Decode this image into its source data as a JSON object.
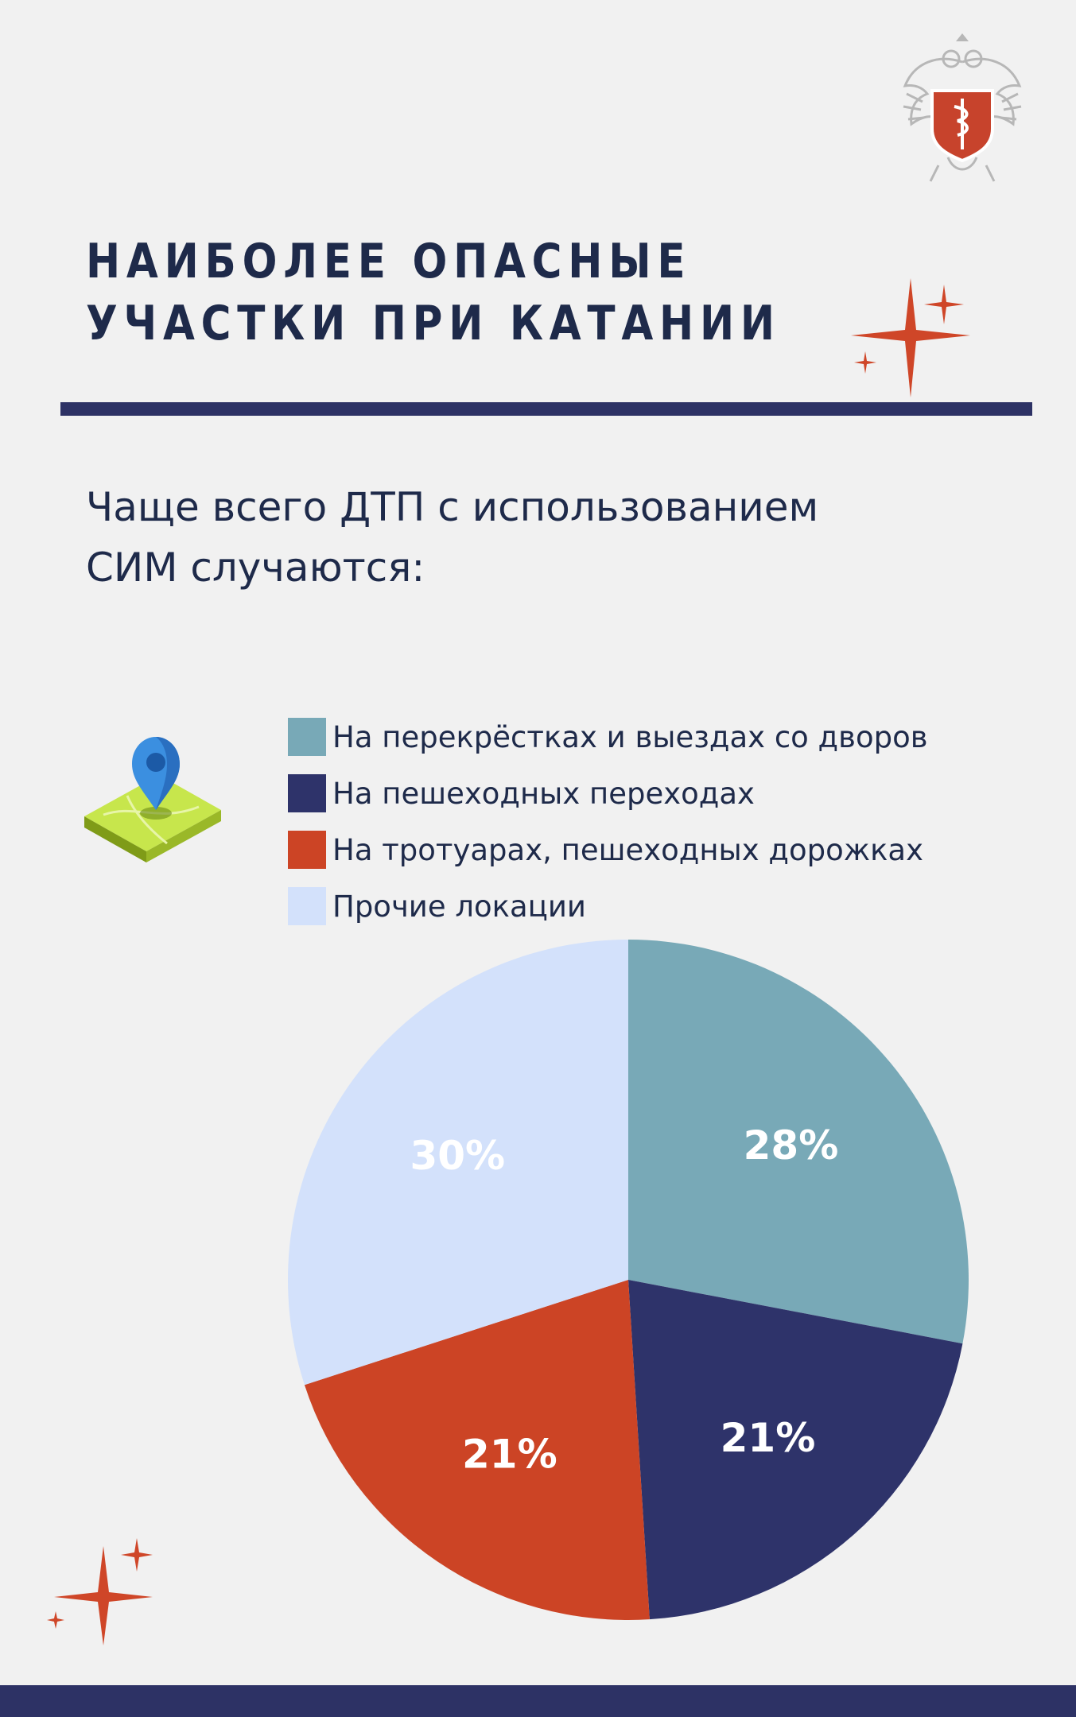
{
  "header": {
    "title_lines": [
      "НАИБОЛЕЕ ОПАСНЫЕ",
      "УЧАСТКИ ПРИ КАТАНИИ"
    ],
    "subtitle_lines": [
      "Чаще всего ДТП с использованием",
      "СИМ случаются:"
    ]
  },
  "icons": {
    "emblem": "ministry-emblem-icon",
    "map": "map-pin-icon",
    "sparkle": "sparkle-icon"
  },
  "colors": {
    "title": "#1e2a4a",
    "accent_bar": "#2d3265",
    "sparkle": "#cf4628"
  },
  "chart_data": {
    "type": "pie",
    "unit": "%",
    "categories": [
      "На перекрёстках и выездах со дворов",
      "На пешеходных переходах",
      "На тротуарах, пешеходных дорожках",
      "Прочие локации"
    ],
    "values": [
      28,
      21,
      21,
      30
    ],
    "labels": [
      "28%",
      "21%",
      "21%",
      "30%"
    ],
    "colors": [
      "#78a9b7",
      "#2e336a",
      "#cc4425",
      "#d3e1fb"
    ],
    "legend": "top"
  }
}
